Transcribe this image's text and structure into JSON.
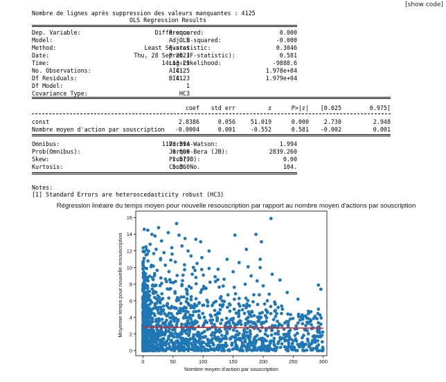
{
  "toolbar": {
    "show_code": "[show code]"
  },
  "header": {
    "line1": "Nombre de lignes après suppression des valeurs manquantes : 4125",
    "line2": "OLS Regression Results"
  },
  "summary_left": [
    {
      "label": "Dep. Variable:",
      "value": "Différence"
    },
    {
      "label": "Model:",
      "value": "OLS"
    },
    {
      "label": "Method:",
      "value": "Least Squares"
    },
    {
      "label": "Date:",
      "value": "Thu, 28 Sep 2023"
    },
    {
      "label": "Time:",
      "value": "14:13:29"
    },
    {
      "label": "No. Observations:",
      "value": "4125"
    },
    {
      "label": "Df Residuals:",
      "value": "4123"
    },
    {
      "label": "Df Model:",
      "value": "1"
    },
    {
      "label": "Covariance Type:",
      "value": "HC3"
    }
  ],
  "summary_right": [
    {
      "label": "R-squared:",
      "value": "0.000"
    },
    {
      "label": "Adj. R-squared:",
      "value": "-0.000"
    },
    {
      "label": "F-statistic:",
      "value": "0.3046"
    },
    {
      "label": "Prob (F-statistic):",
      "value": "0.581"
    },
    {
      "label": "Log-Likelihood:",
      "value": "-9888.6"
    },
    {
      "label": "AIC:",
      "value": "1.978e+04"
    },
    {
      "label": "BIC:",
      "value": "1.979e+04"
    }
  ],
  "coef_table": {
    "headers": [
      "coef",
      "std err",
      "z",
      "P>|z|",
      "[0.025",
      "0.975]"
    ],
    "rows": [
      {
        "name": "const",
        "values": [
          "2.8386",
          "0.056",
          "51.019",
          "0.000",
          "2.730",
          "2.948"
        ]
      },
      {
        "name": "Nombre moyen d'action par souscription",
        "values": [
          "-0.0004",
          "0.001",
          "-0.552",
          "0.581",
          "-0.002",
          "0.001"
        ]
      }
    ]
  },
  "diag_left": [
    {
      "label": "Omnibus:",
      "value": "1173.394"
    },
    {
      "label": "Prob(Omnibus):",
      "value": "0.000"
    },
    {
      "label": "Skew:",
      "value": "1.579"
    },
    {
      "label": "Kurtosis:",
      "value": "5.560"
    }
  ],
  "diag_right": [
    {
      "label": "Durbin-Watson:",
      "value": "1.994"
    },
    {
      "label": "Jarque-Bera (JB):",
      "value": "2839.260"
    },
    {
      "label": "Prob(JB):",
      "value": "0.00"
    },
    {
      "label": "Cond. No.",
      "value": "104."
    }
  ],
  "notes": {
    "title": "Notes:",
    "line1": "[1] Standard Errors are heteroscedasticity robust (HC3)"
  },
  "chart_data": {
    "type": "scatter",
    "title": "Régression linéaire du temps moyen pour nouvelle resouscription par rapport au nombre moyen d'actions par souscription",
    "xlabel": "Nombre moyen d'action par souscription",
    "ylabel": "Moyenne temps pour nouvelle resouscription",
    "xlim": [
      -12,
      306
    ],
    "ylim": [
      -0.6,
      16.8
    ],
    "xticks": [
      0,
      50,
      100,
      150,
      200,
      250,
      300
    ],
    "yticks": [
      0,
      2,
      4,
      6,
      8,
      10,
      12,
      14,
      16
    ],
    "grid": false,
    "point_color": "#1f77b4",
    "line_color": "#d62728",
    "regression_line": {
      "intercept": 2.8386,
      "slope": -0.0004,
      "x_range": [
        0,
        300
      ]
    },
    "sample_points": [
      [
        2,
        14.6
      ],
      [
        8,
        14.5
      ],
      [
        15,
        14.0
      ],
      [
        20,
        13.8
      ],
      [
        26,
        14.8
      ],
      [
        31,
        13.2
      ],
      [
        42,
        14.2
      ],
      [
        56,
        15.3
      ],
      [
        60,
        13.9
      ],
      [
        70,
        13.5
      ],
      [
        75,
        12.0
      ],
      [
        88,
        13.4
      ],
      [
        96,
        13.1
      ],
      [
        5,
        12.5
      ],
      [
        12,
        12.8
      ],
      [
        22,
        12.2
      ],
      [
        35,
        11.8
      ],
      [
        48,
        12.4
      ],
      [
        65,
        12.6
      ],
      [
        80,
        11.4
      ],
      [
        98,
        11.2
      ],
      [
        110,
        12.0
      ],
      [
        125,
        9.8
      ],
      [
        140,
        11.0
      ],
      [
        153,
        13.9
      ],
      [
        172,
        12.2
      ],
      [
        188,
        14.0
      ],
      [
        197,
        13.1
      ],
      [
        213,
        15.9
      ],
      [
        195,
        11.0
      ],
      [
        160,
        10.6
      ],
      [
        175,
        10.1
      ],
      [
        195,
        10.0
      ],
      [
        215,
        9.2
      ],
      [
        228,
        8.5
      ],
      [
        240,
        7.0
      ],
      [
        258,
        6.2
      ],
      [
        265,
        4.3
      ],
      [
        275,
        3.3
      ],
      [
        292,
        7.9
      ],
      [
        296,
        7.4
      ],
      [
        296,
        3.2
      ],
      [
        285,
        1.8
      ],
      [
        270,
        2.5
      ],
      [
        255,
        3.0
      ],
      [
        245,
        3.8
      ],
      [
        232,
        5.0
      ],
      [
        220,
        5.6
      ],
      [
        210,
        6.8
      ],
      [
        200,
        7.8
      ],
      [
        190,
        8.4
      ],
      [
        180,
        9.0
      ],
      [
        170,
        8.0
      ],
      [
        150,
        9.5
      ],
      [
        135,
        8.6
      ],
      [
        120,
        8.9
      ],
      [
        110,
        9.9
      ],
      [
        105,
        7.5
      ],
      [
        90,
        10.5
      ],
      [
        82,
        9.2
      ],
      [
        130,
        6.5
      ],
      [
        145,
        5.5
      ],
      [
        160,
        4.8
      ],
      [
        175,
        4.0
      ],
      [
        185,
        3.4
      ],
      [
        205,
        2.6
      ],
      [
        225,
        2.0
      ],
      [
        235,
        1.5
      ],
      [
        250,
        1.2
      ],
      [
        262,
        0.8
      ],
      [
        276,
        0.5
      ],
      [
        288,
        0.3
      ],
      [
        240,
        0.4
      ],
      [
        210,
        0.6
      ],
      [
        180,
        0.9
      ],
      [
        155,
        0.7
      ],
      [
        130,
        1.2
      ],
      [
        112,
        1.0
      ],
      [
        95,
        0.8
      ],
      [
        72,
        1.4
      ]
    ]
  }
}
